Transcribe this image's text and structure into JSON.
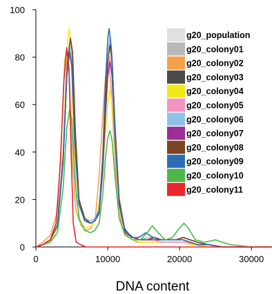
{
  "chart_data": {
    "type": "line",
    "title": "",
    "xlabel": "DNA content",
    "ylabel": "",
    "xlim": [
      0,
      32768
    ],
    "ylim": [
      0,
      100
    ],
    "x_ticks": [
      0,
      10000,
      20000,
      30000
    ],
    "y_ticks": [
      0,
      20,
      40,
      60,
      80,
      100
    ],
    "x_tick_labels": [
      "0",
      "10000",
      "20000",
      "30000"
    ],
    "y_tick_labels": [
      "0",
      "20",
      "40",
      "60",
      "80",
      "100"
    ],
    "grid": false,
    "legend_position": "top-right",
    "series": [
      {
        "name": "g20_population",
        "color": "#e0e0e0",
        "dash": false,
        "x": [
          0,
          1000,
          2000,
          3000,
          3800,
          4300,
          4700,
          5000,
          5400,
          6000,
          6800,
          7600,
          8200,
          8800,
          9300,
          9700,
          10000,
          10300,
          10600,
          11000,
          11600,
          12400,
          13500,
          14500,
          15500,
          16500,
          17500,
          18500,
          19500,
          20500,
          21500,
          22500,
          24000,
          26000,
          28000,
          30000,
          32768
        ],
        "y": [
          0,
          1,
          3,
          10,
          40,
          76,
          86,
          80,
          45,
          18,
          12,
          10,
          11,
          15,
          35,
          60,
          80,
          89,
          80,
          52,
          20,
          7,
          4,
          3,
          3,
          3,
          2,
          2,
          2,
          2,
          2,
          1,
          1,
          0,
          0,
          0,
          0
        ]
      },
      {
        "name": "g20_colony01",
        "color": "#b8b8b8",
        "dash": false,
        "x": [
          0,
          1000,
          2000,
          3000,
          3800,
          4300,
          4700,
          5000,
          5400,
          6000,
          6800,
          7600,
          8200,
          8800,
          9300,
          9700,
          10000,
          10300,
          10600,
          11000,
          11600,
          12400,
          13500,
          14500,
          15500,
          16500,
          17500,
          18500,
          19500,
          20500,
          21500,
          22500,
          24000,
          26000,
          28000,
          30000,
          32768
        ],
        "y": [
          0,
          1,
          3,
          9,
          38,
          75,
          85,
          80,
          46,
          19,
          12,
          11,
          12,
          16,
          36,
          61,
          79,
          87,
          79,
          51,
          20,
          7,
          4,
          3,
          3,
          3,
          3,
          3,
          3,
          3,
          2,
          1,
          1,
          0,
          0,
          0,
          0
        ]
      },
      {
        "name": "g20_colony02",
        "color": "#f7a04a",
        "dash": false,
        "x": [
          0,
          1000,
          2000,
          3000,
          3500,
          4000,
          4300,
          4700,
          5100,
          5600,
          6300,
          7000,
          7700,
          8300,
          8800,
          9300,
          9700,
          10100,
          10400,
          10800,
          11300,
          12000,
          13000,
          14000,
          15000,
          16000,
          17000,
          18000,
          19000,
          20000,
          21000,
          22000,
          24000,
          26000,
          28000,
          30000,
          32768
        ],
        "y": [
          0,
          2,
          5,
          15,
          42,
          78,
          84,
          70,
          35,
          15,
          9,
          7,
          8,
          13,
          30,
          55,
          72,
          78,
          70,
          48,
          22,
          8,
          4,
          2,
          2,
          2,
          2,
          2,
          2,
          2,
          2,
          1,
          0,
          0,
          0,
          0,
          0
        ]
      },
      {
        "name": "g20_colony03",
        "color": "#4a4a4a",
        "dash": false,
        "x": [
          0,
          1000,
          2000,
          3000,
          3800,
          4400,
          4800,
          5100,
          5500,
          6000,
          6800,
          7600,
          8200,
          8800,
          9300,
          9700,
          10000,
          10300,
          10600,
          11000,
          11600,
          12400,
          13500,
          14500,
          15500,
          16500,
          17500,
          18500,
          19500,
          20500,
          21500,
          22500,
          24000,
          26000,
          28000,
          30000,
          32768
        ],
        "y": [
          0,
          1,
          3,
          9,
          38,
          78,
          88,
          82,
          48,
          20,
          12,
          10,
          11,
          15,
          35,
          62,
          80,
          88,
          80,
          52,
          20,
          7,
          4,
          3,
          3,
          4,
          3,
          3,
          3,
          4,
          3,
          2,
          1,
          0,
          0,
          0,
          0
        ]
      },
      {
        "name": "g20_colony04",
        "color": "#f2ea18",
        "dash": false,
        "x": [
          0,
          1000,
          2000,
          3000,
          3800,
          4300,
          4600,
          4900,
          5200,
          5600,
          6200,
          7000,
          7800,
          8500,
          9100,
          9600,
          10000,
          10300,
          10700,
          11100,
          11700,
          12500,
          13500,
          14500,
          15500,
          16500,
          17500,
          18500,
          19500,
          20500,
          21500,
          22500,
          24000,
          26000,
          28000,
          30000,
          32768
        ],
        "y": [
          0,
          1,
          2,
          8,
          40,
          82,
          92,
          85,
          55,
          22,
          10,
          8,
          9,
          13,
          25,
          45,
          60,
          66,
          58,
          38,
          15,
          5,
          3,
          2,
          2,
          2,
          2,
          2,
          2,
          2,
          1,
          1,
          0,
          0,
          0,
          0,
          0
        ]
      },
      {
        "name": "g20_colony05",
        "color": "#f493c0",
        "dash": false,
        "x": [
          0,
          1000,
          2000,
          3000,
          3800,
          4300,
          4700,
          5000,
          5400,
          6000,
          6800,
          7600,
          8200,
          8800,
          9300,
          9700,
          10000,
          10300,
          10600,
          11000,
          11600,
          12400,
          13500,
          14500,
          15500,
          16500,
          17500,
          18500,
          19500,
          20500,
          21500,
          22500,
          24000,
          26000,
          28000,
          30000,
          32768
        ],
        "y": [
          0,
          1,
          3,
          9,
          37,
          74,
          84,
          79,
          45,
          18,
          11,
          10,
          11,
          15,
          34,
          58,
          74,
          80,
          74,
          48,
          19,
          7,
          4,
          3,
          3,
          3,
          2,
          2,
          2,
          2,
          2,
          1,
          1,
          0,
          0,
          0,
          0
        ]
      },
      {
        "name": "g20_colony06",
        "color": "#8ec3e8",
        "dash": false,
        "x": [
          0,
          1000,
          2000,
          3000,
          3800,
          4300,
          4700,
          5000,
          5400,
          6000,
          6800,
          7600,
          8200,
          8800,
          9300,
          9700,
          10000,
          10300,
          10600,
          11000,
          11600,
          12400,
          13500,
          14500,
          15500,
          16500,
          17500,
          18500,
          19500,
          20500,
          21500,
          22500,
          24000,
          26000,
          28000,
          30000,
          32768
        ],
        "y": [
          0,
          1,
          3,
          10,
          39,
          76,
          86,
          80,
          46,
          19,
          12,
          11,
          12,
          16,
          36,
          62,
          80,
          88,
          80,
          51,
          20,
          7,
          4,
          3,
          4,
          4,
          3,
          3,
          3,
          3,
          2,
          1,
          1,
          0,
          0,
          0,
          0
        ]
      },
      {
        "name": "g20_colony07",
        "color": "#9b2f96",
        "dash": false,
        "x": [
          0,
          1000,
          2000,
          3000,
          3800,
          4300,
          4700,
          5000,
          5400,
          6000,
          6800,
          7600,
          8200,
          8800,
          9300,
          9700,
          10000,
          10300,
          10600,
          11000,
          11600,
          12400,
          13500,
          14500,
          15500,
          16500,
          17500,
          18500,
          19500,
          20500,
          21500,
          22500,
          24000,
          26000,
          28000,
          30000,
          32768
        ],
        "y": [
          0,
          1,
          3,
          9,
          36,
          72,
          82,
          77,
          44,
          18,
          11,
          10,
          11,
          14,
          32,
          56,
          72,
          78,
          72,
          46,
          18,
          6,
          4,
          3,
          3,
          3,
          3,
          3,
          3,
          3,
          2,
          1,
          1,
          0,
          0,
          0,
          0
        ]
      },
      {
        "name": "g20_colony08",
        "color": "#7a4422",
        "dash": false,
        "x": [
          0,
          1000,
          2000,
          3000,
          3800,
          4400,
          4800,
          5100,
          5500,
          6000,
          6800,
          7600,
          8200,
          8800,
          9300,
          9700,
          10000,
          10300,
          10600,
          11000,
          11600,
          12400,
          13500,
          14500,
          15500,
          16500,
          17500,
          18500,
          19500,
          20500,
          21500,
          22500,
          24000,
          26000,
          28000,
          30000,
          32768
        ],
        "y": [
          0,
          1,
          3,
          9,
          38,
          78,
          88,
          82,
          48,
          20,
          12,
          10,
          11,
          15,
          34,
          60,
          78,
          85,
          78,
          50,
          19,
          7,
          4,
          3,
          3,
          4,
          3,
          3,
          3,
          4,
          3,
          2,
          1,
          0,
          0,
          0,
          0
        ]
      },
      {
        "name": "g20_colony09",
        "color": "#2a6db5",
        "dash": false,
        "x": [
          0,
          1000,
          2000,
          3000,
          3800,
          4300,
          4700,
          5000,
          5400,
          6000,
          6800,
          7600,
          8200,
          8800,
          9300,
          9700,
          10000,
          10200,
          10500,
          10900,
          11500,
          12300,
          13300,
          14300,
          15300,
          16300,
          17300,
          18500,
          19500,
          20500,
          21500,
          22500,
          24000,
          26000,
          28000,
          30000,
          32768
        ],
        "y": [
          0,
          1,
          3,
          9,
          36,
          72,
          82,
          76,
          44,
          18,
          11,
          10,
          11,
          15,
          38,
          70,
          88,
          92,
          84,
          55,
          22,
          8,
          4,
          4,
          6,
          4,
          3,
          3,
          3,
          3,
          2,
          1,
          1,
          0,
          0,
          0,
          0
        ]
      },
      {
        "name": "g20_colony10",
        "color": "#4db848",
        "dash": false,
        "x": [
          0,
          1000,
          2000,
          3000,
          3800,
          4300,
          4700,
          5000,
          5400,
          6000,
          6800,
          7600,
          8200,
          8800,
          9300,
          9700,
          10000,
          10300,
          10600,
          11000,
          11600,
          12400,
          13500,
          14500,
          15500,
          16200,
          17000,
          18000,
          19000,
          20000,
          20600,
          21200,
          22200,
          23500,
          25000,
          27000,
          30000,
          32768
        ],
        "y": [
          0,
          1,
          2,
          6,
          25,
          50,
          58,
          54,
          30,
          12,
          7,
          6,
          7,
          10,
          22,
          38,
          46,
          49,
          45,
          30,
          12,
          5,
          3,
          3,
          6,
          9,
          6,
          3,
          4,
          8,
          10,
          8,
          3,
          2,
          3,
          1,
          0,
          0
        ]
      },
      {
        "name": "g20_colony11",
        "color": "#e8262b",
        "dash": false,
        "x": [
          0,
          1000,
          2000,
          2800,
          3400,
          3900,
          4300,
          4600,
          4900,
          5200,
          5600,
          6200,
          7000,
          8000,
          9000,
          10000,
          11000,
          12000,
          13000,
          14000,
          15000,
          16000,
          17000,
          18000,
          19000,
          20000,
          21000,
          22000,
          24000,
          26000,
          28000,
          30000,
          32768
        ],
        "y": [
          0,
          1,
          3,
          10,
          35,
          70,
          84,
          75,
          40,
          10,
          2,
          1,
          0,
          0,
          0,
          0,
          0,
          0,
          0,
          0,
          0,
          0,
          0,
          0,
          0,
          0,
          0,
          0,
          0,
          0,
          0,
          0,
          0
        ]
      }
    ]
  }
}
